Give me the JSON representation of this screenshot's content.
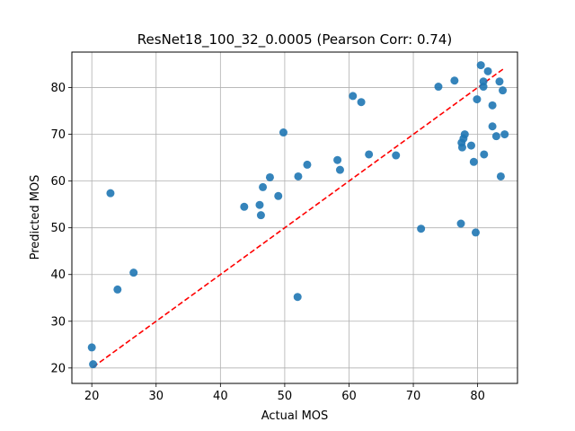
{
  "chart_data": {
    "type": "scatter",
    "title": "ResNet18_100_32_0.0005 (Pearson Corr: 0.74)",
    "xlabel": "Actual MOS",
    "ylabel": "Predicted MOS",
    "xlim": [
      16.9,
      86.2
    ],
    "ylim": [
      16.7,
      87.6
    ],
    "xticks": [
      20,
      30,
      40,
      50,
      60,
      70,
      80
    ],
    "yticks": [
      20,
      30,
      40,
      50,
      60,
      70,
      80
    ],
    "grid": true,
    "marker_color": "#1f77b4",
    "reference_line": {
      "color": "#ff0000",
      "style": "dashed",
      "x": [
        20.2,
        84.1
      ],
      "y": [
        20.2,
        84.1
      ]
    },
    "points": [
      {
        "x": 20.0,
        "y": 24.4
      },
      {
        "x": 20.2,
        "y": 20.8
      },
      {
        "x": 22.9,
        "y": 57.4
      },
      {
        "x": 24.0,
        "y": 36.8
      },
      {
        "x": 26.5,
        "y": 40.4
      },
      {
        "x": 43.7,
        "y": 54.5
      },
      {
        "x": 46.1,
        "y": 54.9
      },
      {
        "x": 46.3,
        "y": 52.7
      },
      {
        "x": 46.6,
        "y": 58.7
      },
      {
        "x": 47.7,
        "y": 60.8
      },
      {
        "x": 49.0,
        "y": 56.8
      },
      {
        "x": 49.8,
        "y": 70.4
      },
      {
        "x": 52.0,
        "y": 35.2
      },
      {
        "x": 52.1,
        "y": 61.0
      },
      {
        "x": 53.5,
        "y": 63.5
      },
      {
        "x": 58.2,
        "y": 64.5
      },
      {
        "x": 58.6,
        "y": 62.4
      },
      {
        "x": 60.6,
        "y": 78.2
      },
      {
        "x": 61.9,
        "y": 76.9
      },
      {
        "x": 63.1,
        "y": 65.7
      },
      {
        "x": 67.3,
        "y": 65.5
      },
      {
        "x": 71.2,
        "y": 49.8
      },
      {
        "x": 73.9,
        "y": 80.2
      },
      {
        "x": 76.4,
        "y": 81.5
      },
      {
        "x": 77.4,
        "y": 50.9
      },
      {
        "x": 77.5,
        "y": 68.2
      },
      {
        "x": 77.6,
        "y": 67.2
      },
      {
        "x": 77.8,
        "y": 69.1
      },
      {
        "x": 78.0,
        "y": 70.0
      },
      {
        "x": 79.0,
        "y": 67.6
      },
      {
        "x": 79.4,
        "y": 64.1
      },
      {
        "x": 79.7,
        "y": 49.0
      },
      {
        "x": 79.9,
        "y": 77.5
      },
      {
        "x": 80.5,
        "y": 84.8
      },
      {
        "x": 80.9,
        "y": 80.2
      },
      {
        "x": 80.9,
        "y": 81.3
      },
      {
        "x": 81.0,
        "y": 65.7
      },
      {
        "x": 81.6,
        "y": 83.5
      },
      {
        "x": 82.3,
        "y": 71.7
      },
      {
        "x": 82.3,
        "y": 76.2
      },
      {
        "x": 82.9,
        "y": 69.6
      },
      {
        "x": 83.4,
        "y": 81.3
      },
      {
        "x": 83.6,
        "y": 61.0
      },
      {
        "x": 83.9,
        "y": 79.4
      },
      {
        "x": 84.2,
        "y": 70.0
      }
    ]
  }
}
